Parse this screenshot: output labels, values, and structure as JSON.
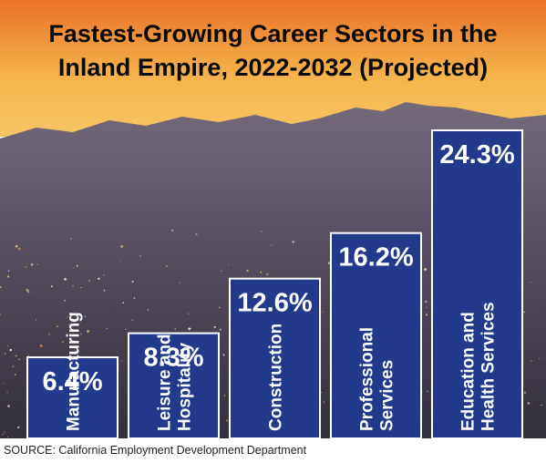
{
  "chart_data": {
    "type": "bar",
    "title_lines": [
      "Fastest-Growing Career Sectors in the",
      "Inland Empire, 2022-2032 (Projected)"
    ],
    "categories": [
      [
        "Manufacturing"
      ],
      [
        "Leisure and",
        "Hospitality"
      ],
      [
        "Construction"
      ],
      [
        "Professional",
        "Services"
      ],
      [
        "Education and",
        "Health Services"
      ]
    ],
    "values": [
      6.4,
      8.3,
      12.6,
      16.2,
      24.3
    ],
    "value_labels": [
      "6.4%",
      "8.3%",
      "12.6%",
      "16.2%",
      "24.3%"
    ],
    "ylim": [
      0,
      24.3
    ],
    "grid": false,
    "legend": "none",
    "bar_color": "#233a8c",
    "bar_border_color": "#ffffff",
    "source": "SOURCE: California Employment Development Department"
  },
  "colors": {
    "title_text": "#0a0a0a",
    "bar_text": "#ffffff",
    "source_text": "#222222",
    "sky_top": "#e9722a",
    "sky_mid": "#f6b24a",
    "sky_low": "#f7c565",
    "mountain": "#6f6579",
    "city_dark": "#3c3848"
  }
}
